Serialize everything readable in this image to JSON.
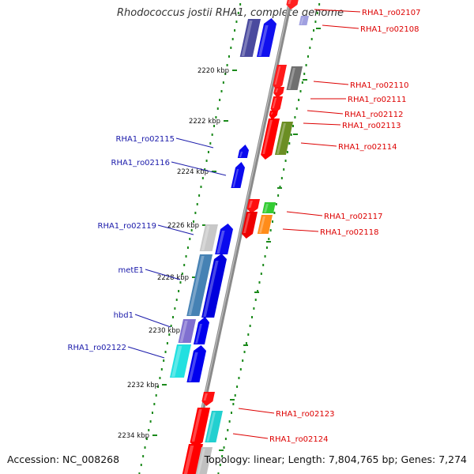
{
  "title": "Rhodococcus jostii RHA1, complete genome",
  "accession": "Accession: NC_008268",
  "summary": "Topology: linear; Length: 7,804,765 bp; Genes: 7,274",
  "colors": {
    "backbone": "#888888",
    "ticks": "#228b22",
    "label_red": "#dd0000",
    "label_blue": "#1a1aaa",
    "gene_red": "#ff0000",
    "gene_blue": "#0000ee"
  },
  "scale_labels": [
    "2220 kbp",
    "2222 kbp",
    "2224 kbp",
    "2226 kbp",
    "2228 kbp",
    "2230 kbp",
    "2232 kbp",
    "2234 kbp"
  ],
  "right_labels": [
    "RHA1_ro02107",
    "RHA1_ro02108",
    "RHA1_ro02110",
    "RHA1_ro02111",
    "RHA1_ro02112",
    "RHA1_ro02113",
    "RHA1_ro02114",
    "RHA1_ro02117",
    "RHA1_ro02118",
    "RHA1_ro02123",
    "RHA1_ro02124"
  ],
  "left_labels": [
    "RHA1_ro02115",
    "RHA1_ro02116",
    "RHA1_ro02119",
    "metE1",
    "hbd1",
    "RHA1_ro02122"
  ]
}
